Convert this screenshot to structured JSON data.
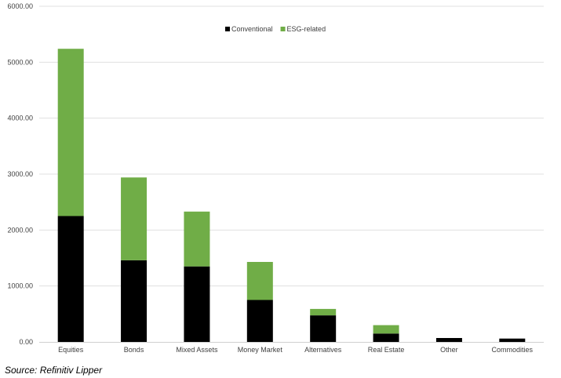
{
  "chart_data": {
    "type": "bar",
    "stacked": true,
    "title": "",
    "xlabel": "",
    "ylabel": "",
    "categories": [
      "Equities",
      "Bonds",
      "Mixed Assets",
      "Money Market",
      "Alternatives",
      "Real Estate",
      "Other",
      "Commodities"
    ],
    "series": [
      {
        "name": "Conventional",
        "color": "#000000",
        "values": [
          2250,
          1460,
          1350,
          750,
          475,
          150,
          70,
          60
        ]
      },
      {
        "name": "ESG-related",
        "color": "#70ad47",
        "values": [
          2990,
          1480,
          980,
          680,
          115,
          150,
          0,
          0
        ]
      }
    ],
    "ylim": [
      0,
      6000
    ],
    "yticks": [
      "0.00",
      "1000.00",
      "2000.00",
      "3000.00",
      "4000.00",
      "5000.00",
      "6000.00"
    ],
    "grid": true,
    "legend_position": "top-center"
  },
  "source": "Source: Refinitiv Lipper"
}
